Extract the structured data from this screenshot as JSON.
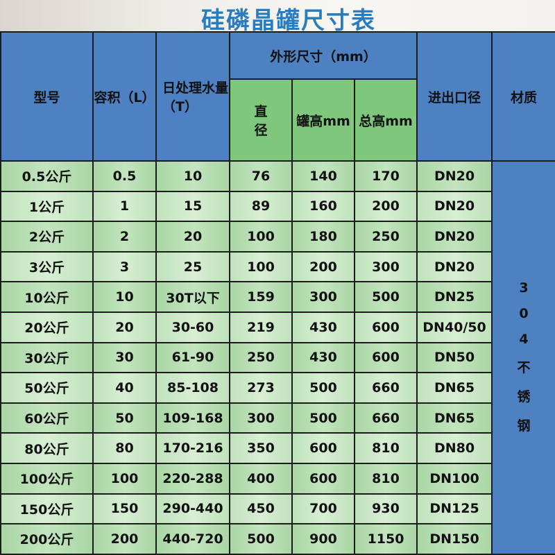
{
  "title": "硅磷晶罐尺寸表",
  "headers": {
    "model": "型号",
    "volume": "容积（L）",
    "daily": "日处理水量（T）",
    "dims": "外形尺寸（mm）",
    "diameter": "直径",
    "tank_height": "罐高mm",
    "total_height": "总高mm",
    "port": "进出口径",
    "material": "材质"
  },
  "material_value": [
    "3",
    "0",
    "4",
    "不",
    "锈",
    "钢"
  ],
  "rows": [
    [
      "0.5公斤",
      "0.5",
      "10",
      "76",
      "140",
      "170",
      "DN20"
    ],
    [
      "1公斤",
      "1",
      "15",
      "89",
      "160",
      "200",
      "DN20"
    ],
    [
      "2公斤",
      "2",
      "20",
      "100",
      "180",
      "250",
      "DN20"
    ],
    [
      "3公斤",
      "3",
      "25",
      "100",
      "200",
      "300",
      "DN20"
    ],
    [
      "10公斤",
      "10",
      "30T以下",
      "159",
      "300",
      "500",
      "DN25"
    ],
    [
      "20公斤",
      "20",
      "30-60",
      "219",
      "430",
      "600",
      "DN40/50"
    ],
    [
      "30公斤",
      "30",
      "61-90",
      "250",
      "430",
      "600",
      "DN50"
    ],
    [
      "50公斤",
      "40",
      "85-108",
      "273",
      "500",
      "660",
      "DN65"
    ],
    [
      "60公斤",
      "50",
      "109-168",
      "300",
      "500",
      "660",
      "DN65"
    ],
    [
      "80公斤",
      "80",
      "170-216",
      "350",
      "600",
      "810",
      "DN80"
    ],
    [
      "100公斤",
      "100",
      "220-288",
      "400",
      "600",
      "810",
      "DN100"
    ],
    [
      "150公斤",
      "150",
      "290-440",
      "450",
      "700",
      "930",
      "DN125"
    ],
    [
      "200公斤",
      "200",
      "440-720",
      "500",
      "900",
      "1150",
      "DN150"
    ]
  ]
}
